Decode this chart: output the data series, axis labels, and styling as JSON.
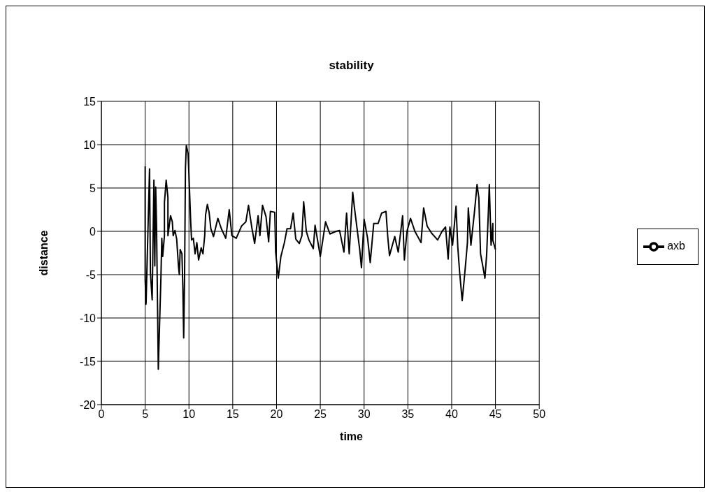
{
  "chart_data": {
    "type": "line",
    "title": "stability",
    "xlabel": "time",
    "ylabel": "distance",
    "xlim": [
      0,
      50
    ],
    "xticks": [
      0,
      5,
      10,
      15,
      20,
      25,
      30,
      35,
      40,
      45,
      50
    ],
    "ylim": [
      -20,
      15
    ],
    "yticks": [
      -20,
      -15,
      -10,
      -5,
      0,
      5,
      10,
      15
    ],
    "grid": true,
    "legend": "right",
    "series": [
      {
        "name": "axb",
        "color": "#000000",
        "x": [
          5.0,
          5.0,
          5.1,
          5.5,
          5.6,
          5.8,
          6.0,
          6.1,
          6.2,
          6.3,
          6.5,
          6.8,
          6.9,
          7.0,
          7.2,
          7.2,
          7.4,
          7.6,
          7.6,
          7.9,
          8.1,
          8.2,
          8.4,
          8.6,
          8.8,
          8.9,
          9.0,
          9.2,
          9.3,
          9.4,
          9.5,
          9.6,
          9.7,
          9.9,
          10.0,
          10.2,
          10.3,
          10.5,
          10.7,
          10.9,
          11.1,
          11.4,
          11.6,
          11.8,
          11.9,
          12.1,
          12.3,
          12.5,
          12.8,
          13.3,
          13.7,
          14.2,
          14.6,
          14.9,
          15.4,
          16.0,
          16.5,
          16.8,
          17.2,
          17.5,
          17.9,
          18.1,
          18.4,
          18.8,
          19.1,
          19.3,
          19.8,
          19.9,
          20.2,
          20.5,
          20.9,
          21.2,
          21.6,
          21.9,
          22.2,
          22.6,
          22.9,
          23.1,
          23.4,
          23.7,
          24.2,
          24.4,
          25.0,
          25.6,
          26.1,
          26.8,
          27.2,
          27.7,
          28.0,
          28.3,
          28.7,
          28.9,
          29.1,
          29.5,
          29.7,
          30.0,
          30.4,
          30.7,
          31.1,
          31.6,
          32.0,
          32.5,
          32.7,
          32.9,
          33.5,
          33.9,
          34.4,
          34.6,
          34.9,
          35.3,
          35.8,
          36.5,
          36.8,
          37.2,
          37.7,
          38.4,
          38.9,
          39.3,
          39.6,
          39.8,
          40.1,
          40.5,
          40.7,
          40.9,
          41.2,
          41.4,
          41.6,
          41.8,
          41.9,
          42.2,
          42.6,
          42.9,
          43.1,
          43.3,
          43.5,
          43.8,
          44.0,
          44.2,
          44.3,
          44.5,
          44.7,
          44.7,
          45.0
        ],
        "values": [
          7.5,
          -5.6,
          -8.4,
          7.2,
          -4.8,
          -7.9,
          5.9,
          -4.0,
          5.1,
          0.6,
          -15.9,
          -5.3,
          -0.8,
          -2.9,
          -0.5,
          3.3,
          5.9,
          3.9,
          -0.5,
          1.8,
          1.1,
          -0.5,
          0.1,
          -0.9,
          -4.0,
          -5.0,
          -2.1,
          -2.6,
          -6.4,
          -12.3,
          -5.3,
          7.3,
          9.9,
          9.0,
          6.5,
          1.1,
          -1.0,
          -0.8,
          -2.6,
          -1.3,
          -3.3,
          -1.9,
          -2.6,
          -0.5,
          1.9,
          3.1,
          2.2,
          0.3,
          -0.6,
          1.5,
          0.3,
          -0.8,
          2.5,
          -0.5,
          -0.8,
          0.6,
          1.1,
          3.0,
          0.3,
          -1.4,
          1.8,
          -0.5,
          3.0,
          1.7,
          -1.2,
          2.3,
          2.2,
          -2.4,
          -5.4,
          -2.9,
          -1.3,
          0.3,
          0.3,
          2.1,
          -0.9,
          -1.4,
          -0.5,
          3.4,
          0.0,
          -1.0,
          -2.0,
          0.7,
          -2.9,
          1.1,
          -0.3,
          0.0,
          0.1,
          -2.4,
          2.1,
          -2.6,
          4.5,
          2.7,
          1.1,
          -2.1,
          -4.2,
          1.4,
          -0.8,
          -3.6,
          0.9,
          0.9,
          2.1,
          2.3,
          -0.6,
          -2.8,
          -0.6,
          -2.4,
          1.8,
          -3.3,
          0.0,
          1.5,
          0.0,
          -1.3,
          2.7,
          0.6,
          -0.2,
          -1.0,
          0.0,
          0.5,
          -3.2,
          0.5,
          -1.6,
          2.9,
          -1.8,
          -4.6,
          -8.0,
          -5.9,
          -3.7,
          -1.3,
          2.7,
          -1.6,
          2.2,
          5.4,
          3.9,
          -2.6,
          -3.7,
          -5.4,
          -2.6,
          2.5,
          5.4,
          -1.6,
          0.9,
          -1.0,
          -2.1
        ]
      }
    ]
  }
}
